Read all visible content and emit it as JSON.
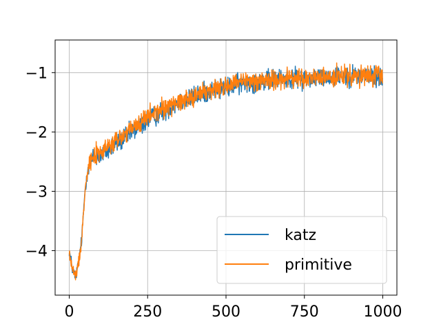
{
  "chart_data": {
    "type": "line",
    "title": "",
    "xlabel": "",
    "ylabel": "",
    "xlim": [
      -45,
      1045
    ],
    "ylim": [
      -4.75,
      -0.45
    ],
    "x_ticks": [
      0,
      250,
      500,
      750,
      1000
    ],
    "x_tick_labels": [
      "0",
      "250",
      "500",
      "750",
      "1000"
    ],
    "y_ticks": [
      -4,
      -3,
      -2,
      -1
    ],
    "y_tick_labels": [
      "−4",
      "−3",
      "−2",
      "−1"
    ],
    "grid": true,
    "legend_position": "lower-right",
    "x_start": 0,
    "x_end": 999,
    "series": [
      {
        "name": "katz",
        "color": "#1f77b4",
        "x": [
          0,
          10,
          20,
          30,
          40,
          50,
          60,
          75,
          100,
          150,
          200,
          250,
          300,
          350,
          400,
          450,
          500,
          550,
          600,
          650,
          700,
          750,
          800,
          850,
          900,
          950,
          999
        ],
        "y": [
          -4.0,
          -4.3,
          -4.45,
          -4.2,
          -3.8,
          -3.0,
          -2.6,
          -2.45,
          -2.4,
          -2.2,
          -2.0,
          -1.8,
          -1.65,
          -1.5,
          -1.4,
          -1.3,
          -1.25,
          -1.18,
          -1.15,
          -1.12,
          -1.1,
          -1.1,
          -1.08,
          -1.05,
          -1.05,
          -1.05,
          -1.1
        ]
      },
      {
        "name": "primitive",
        "color": "#ff7f0e",
        "x": [
          0,
          10,
          20,
          30,
          40,
          50,
          60,
          75,
          100,
          150,
          200,
          250,
          300,
          350,
          400,
          450,
          500,
          550,
          600,
          650,
          700,
          750,
          800,
          850,
          900,
          950,
          999
        ],
        "y": [
          -4.05,
          -4.3,
          -4.45,
          -4.2,
          -3.8,
          -3.0,
          -2.55,
          -2.4,
          -2.35,
          -2.15,
          -1.95,
          -1.75,
          -1.6,
          -1.48,
          -1.38,
          -1.3,
          -1.22,
          -1.17,
          -1.13,
          -1.12,
          -1.1,
          -1.1,
          -1.08,
          -1.07,
          -1.07,
          -1.07,
          -1.05
        ]
      }
    ]
  }
}
